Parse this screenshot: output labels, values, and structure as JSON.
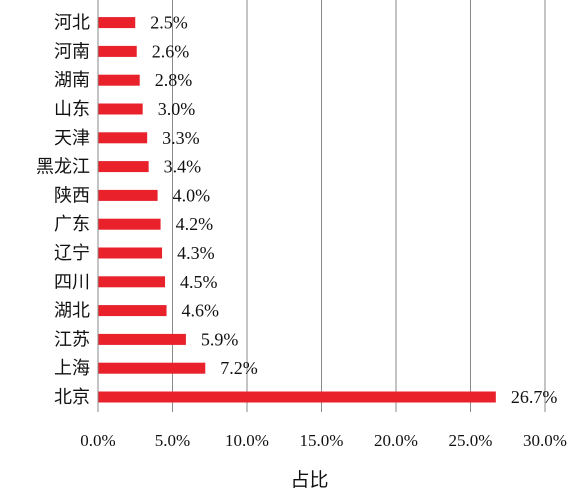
{
  "chart_data": {
    "type": "bar",
    "orientation": "horizontal",
    "categories": [
      "北京",
      "上海",
      "江苏",
      "湖北",
      "四川",
      "辽宁",
      "广东",
      "陕西",
      "黑龙江",
      "天津",
      "山东",
      "湖南",
      "河南",
      "河北"
    ],
    "values": [
      26.7,
      7.2,
      5.9,
      4.6,
      4.5,
      4.3,
      4.2,
      4.0,
      3.4,
      3.3,
      3.0,
      2.8,
      2.6,
      2.5
    ],
    "data_labels": [
      "26.7%",
      "7.2%",
      "5.9%",
      "4.6%",
      "4.5%",
      "4.3%",
      "4.2%",
      "4.0%",
      "3.4%",
      "3.3%",
      "3.0%",
      "2.8%",
      "2.6%",
      "2.5%"
    ],
    "x_ticks": [
      "0.0%",
      "5.0%",
      "10.0%",
      "15.0%",
      "20.0%",
      "25.0%",
      "30.0%"
    ],
    "xlabel": "占比",
    "xlim": [
      0,
      30
    ],
    "grid": "vertical",
    "bar_color": "#e8212b"
  }
}
